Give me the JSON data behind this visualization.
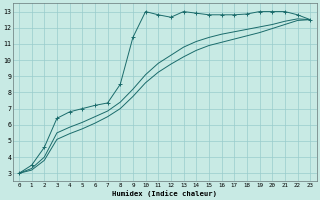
{
  "xlabel": "Humidex (Indice chaleur)",
  "xlim": [
    -0.5,
    23.5
  ],
  "ylim": [
    2.5,
    13.5
  ],
  "xticks": [
    0,
    1,
    2,
    3,
    4,
    5,
    6,
    7,
    8,
    9,
    10,
    11,
    12,
    13,
    14,
    15,
    16,
    17,
    18,
    19,
    20,
    21,
    22,
    23
  ],
  "yticks": [
    3,
    4,
    5,
    6,
    7,
    8,
    9,
    10,
    11,
    12,
    13
  ],
  "bg_color": "#c8eae4",
  "grid_color": "#99cccc",
  "line_color": "#1a6b6b",
  "line1_x": [
    0,
    1,
    2,
    3,
    4,
    5,
    6,
    7,
    8,
    9,
    10,
    11,
    12,
    13,
    14,
    15,
    16,
    17,
    18,
    19,
    20,
    21,
    22,
    23
  ],
  "line1_y": [
    3.0,
    3.5,
    4.6,
    6.4,
    6.8,
    7.0,
    7.2,
    7.35,
    8.5,
    11.4,
    13.0,
    12.8,
    12.65,
    13.0,
    12.9,
    12.8,
    12.8,
    12.8,
    12.85,
    13.0,
    13.0,
    13.0,
    12.8,
    12.5
  ],
  "line2_x": [
    0,
    1,
    2,
    3,
    4,
    5,
    6,
    7,
    8,
    9,
    10,
    11,
    12,
    13,
    14,
    15,
    16,
    17,
    18,
    19,
    20,
    21,
    22,
    23
  ],
  "line2_y": [
    3.0,
    3.3,
    4.0,
    5.5,
    5.85,
    6.15,
    6.5,
    6.85,
    7.4,
    8.2,
    9.1,
    9.8,
    10.3,
    10.8,
    11.15,
    11.4,
    11.6,
    11.75,
    11.9,
    12.05,
    12.2,
    12.4,
    12.55,
    12.5
  ],
  "line3_x": [
    0,
    1,
    2,
    3,
    4,
    5,
    6,
    7,
    8,
    9,
    10,
    11,
    12,
    13,
    14,
    15,
    16,
    17,
    18,
    19,
    20,
    21,
    22,
    23
  ],
  "line3_y": [
    3.0,
    3.2,
    3.8,
    5.1,
    5.45,
    5.75,
    6.1,
    6.5,
    7.0,
    7.75,
    8.6,
    9.25,
    9.75,
    10.2,
    10.6,
    10.9,
    11.1,
    11.3,
    11.5,
    11.7,
    11.95,
    12.2,
    12.45,
    12.5
  ]
}
